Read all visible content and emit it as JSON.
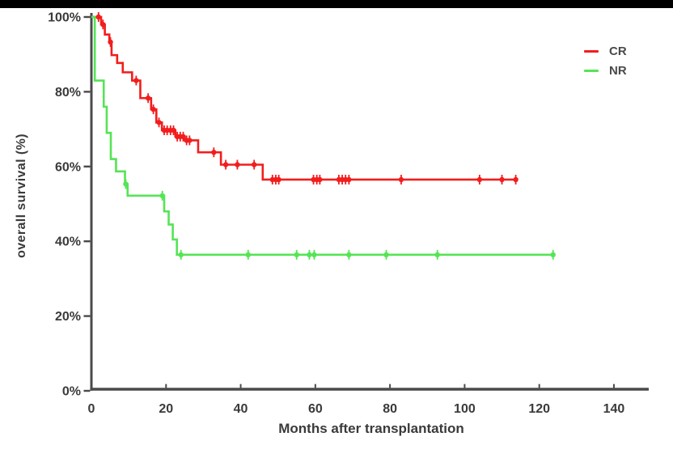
{
  "page": {
    "background": "#ffffff",
    "letterbox_color": "#000000"
  },
  "chart_data": {
    "type": "line",
    "subtype": "kaplan-meier-step",
    "title": "",
    "xlabel": "Months after transplantation",
    "ylabel": "overall survival (%)",
    "xlim": [
      0,
      150
    ],
    "ylim": [
      0,
      100
    ],
    "xticks": [
      0,
      20,
      40,
      60,
      80,
      100,
      120,
      140
    ],
    "ytick_values": [
      0,
      20,
      40,
      60,
      80,
      100
    ],
    "ytick_labels": [
      "0%",
      "20%",
      "40%",
      "60%",
      "80%",
      "100%"
    ],
    "grid": false,
    "axis_color": "#4a4a4c",
    "text_color": "#3a3a3a",
    "legend": {
      "position": "top-right",
      "entries": [
        {
          "label": "CR",
          "color": "#f21d1d"
        },
        {
          "label": "NR",
          "color": "#55e455"
        }
      ]
    },
    "series": [
      {
        "name": "CR",
        "color": "#f21d1d",
        "end_month": 114,
        "steps": [
          [
            0,
            100
          ],
          [
            2.6,
            98
          ],
          [
            3.6,
            95.3
          ],
          [
            4.8,
            93.3
          ],
          [
            5.4,
            89.8
          ],
          [
            6.9,
            87.7
          ],
          [
            8.4,
            85.2
          ],
          [
            10.9,
            83
          ],
          [
            13.1,
            78.3
          ],
          [
            16,
            75.3
          ],
          [
            17.4,
            71.8
          ],
          [
            18.9,
            69.7
          ],
          [
            22.5,
            68
          ],
          [
            25,
            67
          ],
          [
            28.6,
            63.8
          ],
          [
            34.7,
            60.5
          ],
          [
            45.9,
            56.5
          ]
        ],
        "censor_marks": [
          [
            1.9,
            100
          ],
          [
            3.1,
            98
          ],
          [
            5.1,
            93.3
          ],
          [
            12,
            83
          ],
          [
            15.2,
            78.3
          ],
          [
            16.6,
            75.3
          ],
          [
            18.1,
            71.8
          ],
          [
            19.5,
            69.7
          ],
          [
            20.3,
            69.7
          ],
          [
            21.2,
            69.7
          ],
          [
            22,
            69.7
          ],
          [
            23,
            68
          ],
          [
            23.8,
            68
          ],
          [
            24.6,
            68
          ],
          [
            25.5,
            67
          ],
          [
            26.3,
            67
          ],
          [
            32.8,
            63.8
          ],
          [
            36,
            60.5
          ],
          [
            39.1,
            60.5
          ],
          [
            43.6,
            60.5
          ],
          [
            48.5,
            56.5
          ],
          [
            49.4,
            56.5
          ],
          [
            50.2,
            56.5
          ],
          [
            59.5,
            56.5
          ],
          [
            60.4,
            56.5
          ],
          [
            61.2,
            56.5
          ],
          [
            66.3,
            56.5
          ],
          [
            67.2,
            56.5
          ],
          [
            68.1,
            56.5
          ],
          [
            69,
            56.5
          ],
          [
            83,
            56.5
          ],
          [
            104,
            56.5
          ],
          [
            110,
            56.5
          ],
          [
            113.7,
            56.5
          ]
        ]
      },
      {
        "name": "NR",
        "color": "#55e455",
        "end_month": 124,
        "steps": [
          [
            0,
            100
          ],
          [
            0.9,
            83
          ],
          [
            3.3,
            76
          ],
          [
            4.1,
            69
          ],
          [
            5.2,
            62
          ],
          [
            6.6,
            58.7
          ],
          [
            9,
            55.3
          ],
          [
            9.7,
            52.2
          ],
          [
            19.5,
            48
          ],
          [
            20.7,
            44.5
          ],
          [
            21.8,
            40.5
          ],
          [
            22.9,
            36.4
          ]
        ],
        "censor_marks": [
          [
            9.2,
            55.3
          ],
          [
            19,
            52.2
          ],
          [
            24,
            36.4
          ],
          [
            42,
            36.4
          ],
          [
            55,
            36.4
          ],
          [
            58.4,
            36.4
          ],
          [
            59.7,
            36.4
          ],
          [
            69,
            36.4
          ],
          [
            79,
            36.4
          ],
          [
            92.7,
            36.4
          ],
          [
            123.7,
            36.4
          ]
        ]
      }
    ]
  }
}
